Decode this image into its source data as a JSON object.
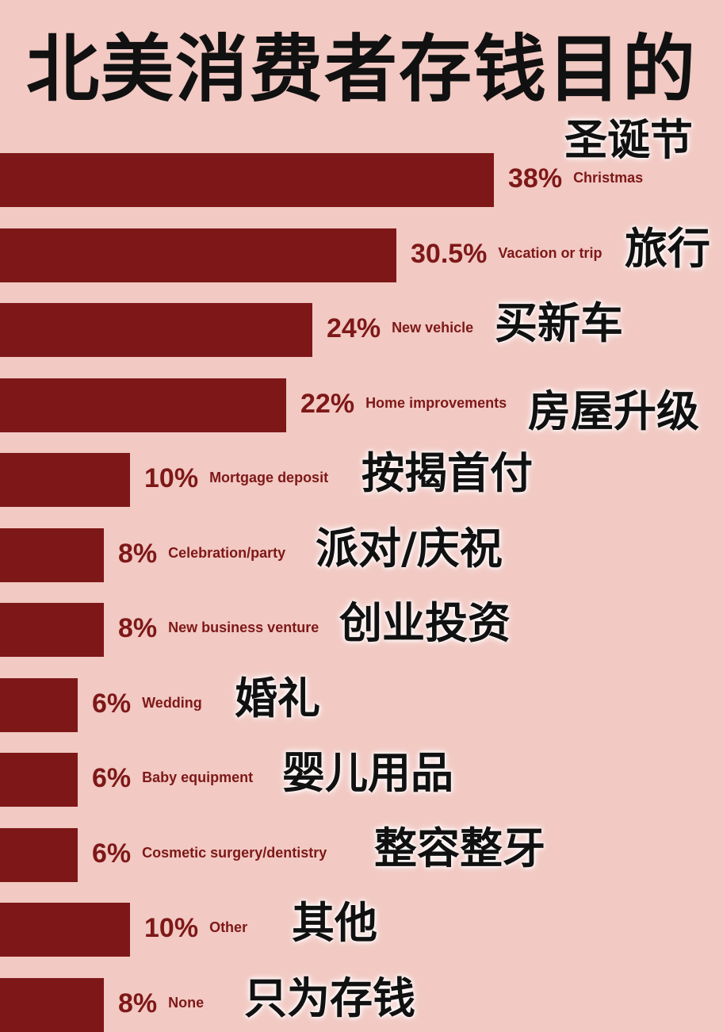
{
  "title": "北美消费者存钱目的",
  "colors": {
    "background": "#f2c9c3",
    "bar": "#7e1818",
    "label": "#7e1818",
    "chinese_text": "#111111"
  },
  "chart_data": {
    "type": "bar",
    "orientation": "horizontal",
    "title": "北美消费者存钱目的",
    "unit": "%",
    "categories": [
      "Christmas",
      "Vacation or trip",
      "New vehicle",
      "Home improvements",
      "Mortgage deposit",
      "Celebration/party",
      "New business venture",
      "Wedding",
      "Baby equipment",
      "Cosmetic surgery/dentistry",
      "Other",
      "None"
    ],
    "categories_zh": [
      "圣诞节",
      "旅行",
      "买新车",
      "房屋升级",
      "按揭首付",
      "派对/庆祝",
      "创业投资",
      "婚礼",
      "婴儿用品",
      "整容整牙",
      "其他",
      "只为存钱"
    ],
    "value_labels": [
      "38%",
      "30.5%",
      "24%",
      "22%",
      "10%",
      "8%",
      "8%",
      "6%",
      "6%",
      "6%",
      "10%",
      "8%"
    ],
    "values": [
      38,
      30.5,
      24,
      22,
      10,
      8,
      8,
      6,
      6,
      6,
      10,
      8
    ],
    "grid": false,
    "legend": "none"
  }
}
